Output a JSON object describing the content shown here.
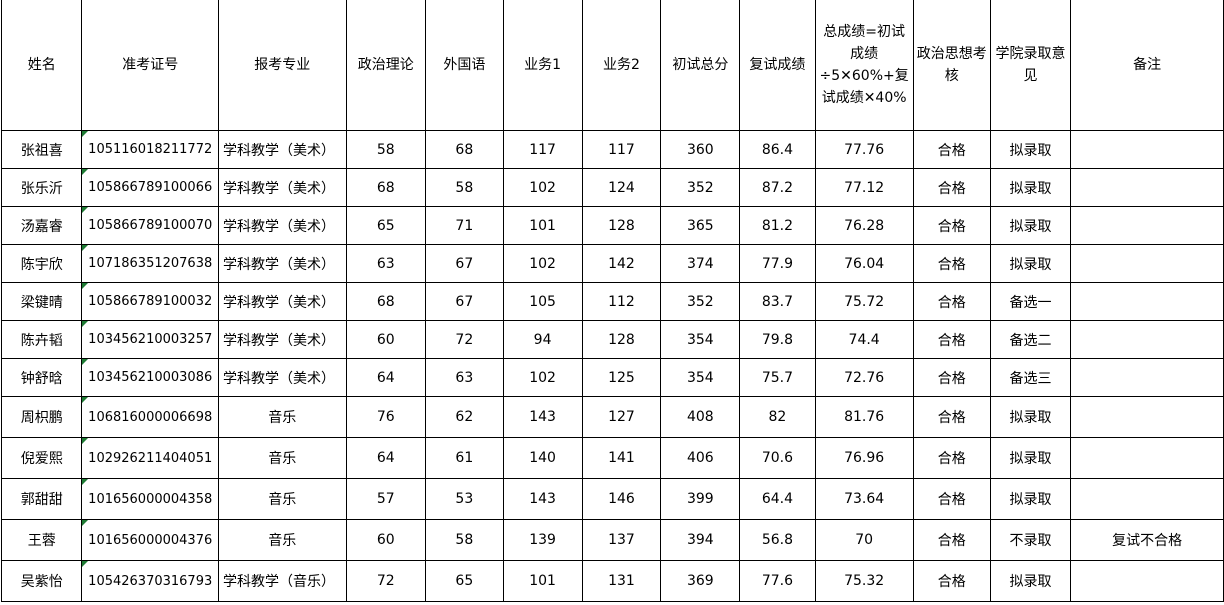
{
  "headers": [
    "姓名",
    "准考证号",
    "报考专业",
    "政治理论",
    "外国语",
    "业务1",
    "业务2",
    "初试总分",
    "复试成绩",
    "总成绩=初试成绩÷5✕60%+复试成绩✕40%",
    "政治思想考核",
    "学院录取意见",
    "备注"
  ],
  "rows": [
    [
      "张祖喜",
      "105116018211772",
      "学科教学（美术）",
      "58",
      "68",
      "117",
      "117",
      "360",
      "86.4",
      "77.76",
      "合格",
      "拟录取",
      ""
    ],
    [
      "张乐沂",
      "105866789100066",
      "学科教学（美术）",
      "68",
      "58",
      "102",
      "124",
      "352",
      "87.2",
      "77.12",
      "合格",
      "拟录取",
      ""
    ],
    [
      "汤嘉睿",
      "105866789100070",
      "学科教学（美术）",
      "65",
      "71",
      "101",
      "128",
      "365",
      "81.2",
      "76.28",
      "合格",
      "拟录取",
      ""
    ],
    [
      "陈宇欣",
      "107186351207638",
      "学科教学（美术）",
      "63",
      "67",
      "102",
      "142",
      "374",
      "77.9",
      "76.04",
      "合格",
      "拟录取",
      ""
    ],
    [
      "梁键晴",
      "105866789100032",
      "学科教学（美术）",
      "68",
      "67",
      "105",
      "112",
      "352",
      "83.7",
      "75.72",
      "合格",
      "备选一",
      ""
    ],
    [
      "陈卉韬",
      "103456210003257",
      "学科教学（美术）",
      "60",
      "72",
      "94",
      "128",
      "354",
      "79.8",
      "74.4",
      "合格",
      "备选二",
      ""
    ],
    [
      "钟舒晗",
      "103456210003086",
      "学科教学（美术）",
      "64",
      "63",
      "102",
      "125",
      "354",
      "75.7",
      "72.76",
      "合格",
      "备选三",
      ""
    ],
    [
      "周枳鹏",
      "106816000006698",
      "音乐",
      "76",
      "62",
      "143",
      "127",
      "408",
      "82",
      "81.76",
      "合格",
      "拟录取",
      ""
    ],
    [
      "倪爱熙",
      "102926211404051",
      "音乐",
      "64",
      "61",
      "140",
      "141",
      "406",
      "70.6",
      "76.96",
      "合格",
      "拟录取",
      ""
    ],
    [
      "郭甜甜",
      "101656000004358",
      "音乐",
      "57",
      "53",
      "143",
      "146",
      "399",
      "64.4",
      "73.64",
      "合格",
      "拟录取",
      ""
    ],
    [
      "王蓉",
      "101656000004376",
      "音乐",
      "60",
      "58",
      "139",
      "137",
      "394",
      "56.8",
      "70",
      "合格",
      "不录取",
      "复试不合格"
    ],
    [
      "吴紫怡",
      "105426370316793",
      "学科教学（音乐）",
      "72",
      "65",
      "101",
      "131",
      "369",
      "77.6",
      "75.32",
      "合格",
      "拟录取",
      ""
    ]
  ]
}
